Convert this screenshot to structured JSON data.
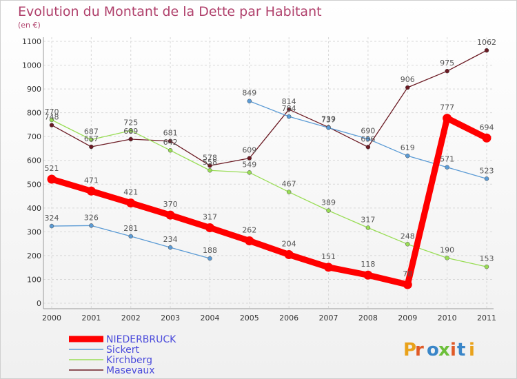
{
  "chart_data": {
    "type": "line",
    "title": "Evolution du Montant de la Dette par Habitant",
    "subtitle": "(en €)",
    "xlabel": "",
    "ylabel": "",
    "ylim": [
      0,
      1100
    ],
    "yticks": [
      0,
      100,
      200,
      300,
      400,
      500,
      600,
      700,
      800,
      900,
      1000,
      1100
    ],
    "categories": [
      "2000",
      "2001",
      "2002",
      "2003",
      "2004",
      "2005",
      "2006",
      "2007",
      "2008",
      "2009",
      "2010",
      "2011"
    ],
    "grid": true,
    "legend_position": "bottom-left",
    "series": [
      {
        "name": "NIEDERBRUCK",
        "color": "#ff0000",
        "values": [
          521,
          471,
          421,
          370,
          317,
          262,
          204,
          151,
          118,
          78,
          777,
          694
        ]
      },
      {
        "name": "Sickert",
        "color": "#5b9bd5",
        "values": [
          324,
          326,
          281,
          234,
          188,
          849,
          784,
          737,
          690,
          619,
          571,
          523
        ]
      },
      {
        "name": "Kirchberg",
        "color": "#99dd55",
        "values": [
          770,
          687,
          725,
          642,
          558,
          549,
          467,
          389,
          317,
          248,
          190,
          153
        ]
      },
      {
        "name": "Masevaux",
        "color": "#6b1a23",
        "values": [
          748,
          657,
          689,
          681,
          578,
          609,
          814,
          739,
          656,
          906,
          975,
          1062
        ]
      }
    ]
  },
  "logo": {
    "text": "Proxiti"
  }
}
